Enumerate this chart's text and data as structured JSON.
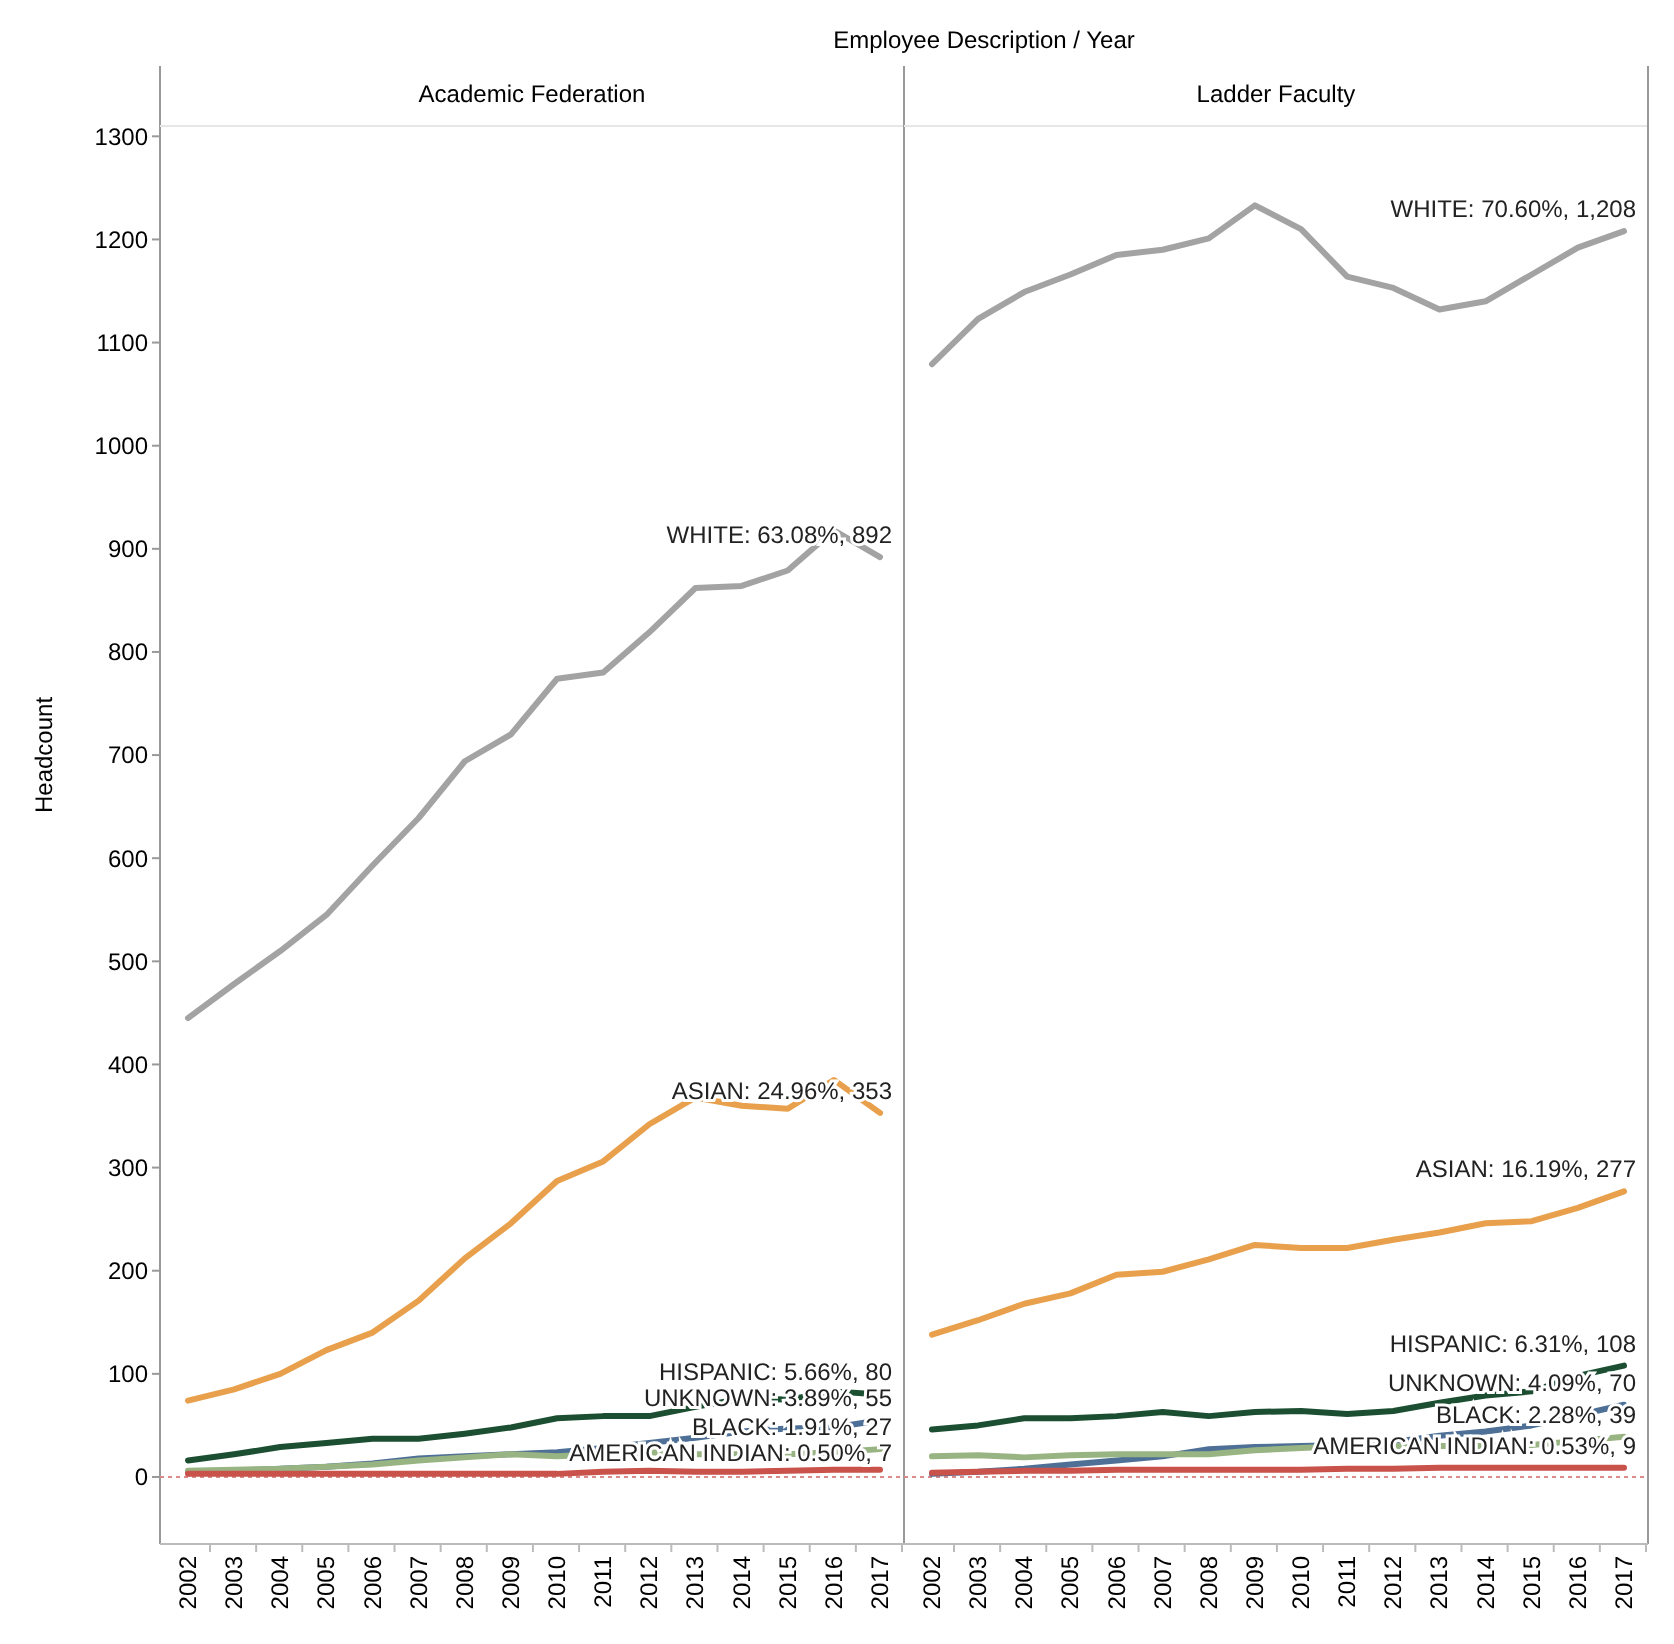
{
  "chart_data": [
    {
      "type": "line",
      "title": "Employee Description  /  Year",
      "subtitle": "Academic Federation",
      "ylabel": "Headcount",
      "categories": [
        "2002",
        "2003",
        "2004",
        "2005",
        "2006",
        "2007",
        "2008",
        "2009",
        "2010",
        "2011",
        "2012",
        "2013",
        "2014",
        "2015",
        "2016",
        "2017"
      ],
      "ylim": [
        -65,
        1310
      ],
      "yticks": [
        0,
        100,
        200,
        300,
        400,
        500,
        600,
        700,
        800,
        900,
        1000,
        1100,
        1200,
        1300
      ],
      "grid": false,
      "line_style": "solid",
      "marker": "none",
      "series": [
        {
          "color": "#a3a3a3",
          "values": [
            445,
            478,
            510,
            545,
            593,
            639,
            694,
            720,
            774,
            780,
            819,
            862,
            864,
            879,
            918,
            892
          ]
        },
        {
          "color": "#e9a04c",
          "values": [
            74,
            85,
            100,
            123,
            140,
            171,
            212,
            246,
            287,
            306,
            342,
            368,
            360,
            357,
            385,
            353
          ]
        },
        {
          "color": "#1c4f32",
          "values": [
            16,
            22,
            29,
            33,
            37,
            37,
            42,
            48,
            57,
            59,
            59,
            68,
            76,
            75,
            83,
            80
          ]
        },
        {
          "color": "#4f7096",
          "values": [
            5,
            6,
            8,
            10,
            13,
            18,
            20,
            22,
            24,
            28,
            33,
            38,
            44,
            47,
            48,
            55
          ]
        },
        {
          "color": "#98b482",
          "values": [
            6,
            7,
            8,
            10,
            12,
            16,
            19,
            22,
            20,
            22,
            24,
            22,
            22,
            22,
            24,
            27
          ]
        },
        {
          "color": "#c9524b",
          "values": [
            3,
            3,
            3,
            3,
            3,
            3,
            3,
            3,
            3,
            5,
            6,
            5,
            5,
            6,
            7,
            7
          ]
        }
      ],
      "ref_lines": [
        {
          "axis": "y",
          "value": 0,
          "color": "#d98b8b",
          "line_style": "dotted"
        }
      ],
      "annotations": [
        {
          "text": "WHITE: 63.08%, 892",
          "x": "2017",
          "y": 892
        },
        {
          "text": "ASIAN: 24.96%, 353",
          "x": "2017",
          "y": 353
        },
        {
          "text": "HISPANIC: 5.66%, 80",
          "x": "2017",
          "y": 80
        },
        {
          "text": "UNKNOWN: 3.89%, 55",
          "x": "2017",
          "y": 55
        },
        {
          "text": "BLACK: 1.91%, 27",
          "x": "2017",
          "y": 27
        },
        {
          "text": "AMERICAN INDIAN: 0.50%, 7",
          "x": "2017",
          "y": 7
        }
      ]
    },
    {
      "type": "line",
      "subtitle": "Ladder Faculty",
      "tick_labels": "x",
      "categories": [
        "2002",
        "2003",
        "2004",
        "2005",
        "2006",
        "2007",
        "2008",
        "2009",
        "2010",
        "2011",
        "2012",
        "2013",
        "2014",
        "2015",
        "2016",
        "2017"
      ],
      "ylim": [
        -65,
        1310
      ],
      "grid": false,
      "line_style": "solid",
      "marker": "none",
      "series": [
        {
          "color": "#a3a3a3",
          "values": [
            1079,
            1123,
            1149,
            1166,
            1185,
            1190,
            1201,
            1233,
            1210,
            1164,
            1153,
            1132,
            1140,
            1166,
            1192,
            1208
          ]
        },
        {
          "color": "#e9a04c",
          "values": [
            138,
            152,
            168,
            178,
            196,
            199,
            211,
            225,
            222,
            222,
            230,
            237,
            246,
            248,
            261,
            277
          ]
        },
        {
          "color": "#1c4f32",
          "values": [
            46,
            50,
            57,
            57,
            59,
            63,
            59,
            63,
            64,
            61,
            64,
            72,
            79,
            83,
            98,
            108
          ]
        },
        {
          "color": "#4f7096",
          "values": [
            3,
            5,
            8,
            12,
            16,
            20,
            27,
            29,
            30,
            31,
            34,
            40,
            44,
            50,
            60,
            70
          ]
        },
        {
          "color": "#98b482",
          "values": [
            20,
            21,
            19,
            21,
            22,
            22,
            22,
            26,
            28,
            30,
            30,
            30,
            30,
            31,
            35,
            39
          ]
        },
        {
          "color": "#c9524b",
          "values": [
            4,
            5,
            6,
            6,
            7,
            7,
            7,
            7,
            7,
            8,
            8,
            9,
            9,
            9,
            9,
            9
          ]
        }
      ],
      "ref_lines": [
        {
          "axis": "y",
          "value": 0,
          "color": "#d98b8b",
          "line_style": "dotted"
        }
      ],
      "annotations": [
        {
          "text": "WHITE: 70.60%, 1,208",
          "x": "2017",
          "y": 1208
        },
        {
          "text": "ASIAN: 16.19%, 277",
          "x": "2017",
          "y": 277
        },
        {
          "text": "HISPANIC: 6.31%, 108",
          "x": "2017",
          "y": 108
        },
        {
          "text": "UNKNOWN: 4.09%, 70",
          "x": "2017",
          "y": 70
        },
        {
          "text": "BLACK: 2.28%, 39",
          "x": "2017",
          "y": 39
        },
        {
          "text": "AMERICAN INDIAN: 0.53%, 9",
          "x": "2017",
          "y": 9
        }
      ]
    }
  ]
}
